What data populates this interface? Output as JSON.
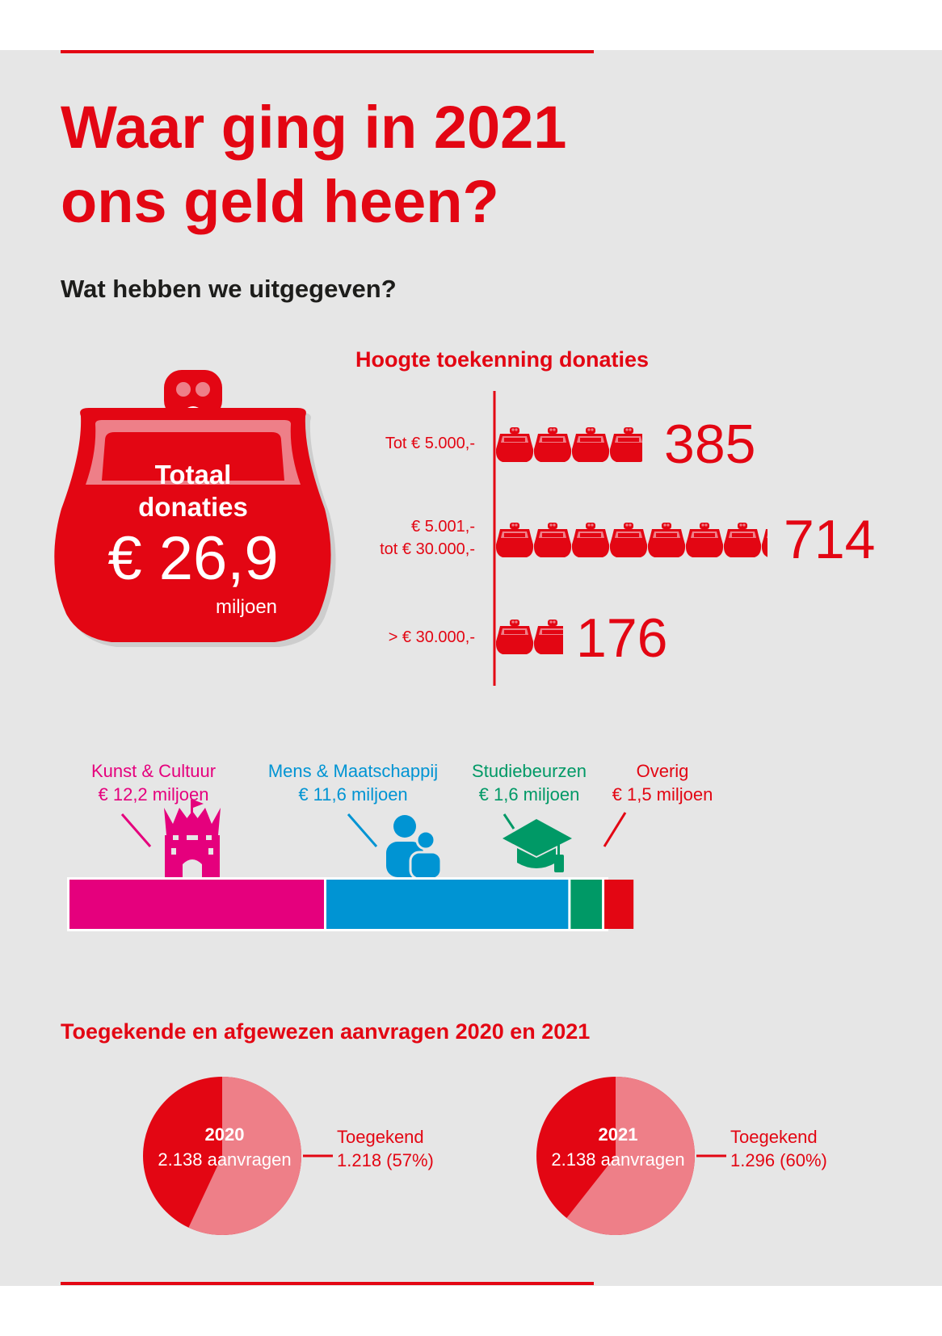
{
  "page": {
    "title_lines": [
      "Waar ging in 2021",
      "ons geld heen?"
    ],
    "subtitle": "Wat hebben we uitgegeven?",
    "colors": {
      "brand_red": "#e30613",
      "light_red": "#ee7f88",
      "panel_bg": "#e6e6e6",
      "dark_text": "#1d1d1b"
    }
  },
  "total": {
    "label_line1": "Totaal",
    "label_line2": "donaties",
    "value": "€ 26,9",
    "unit": "miljoen",
    "icon": "purse-icon"
  },
  "chart_data": [
    {
      "type": "bar",
      "title": "Hoogte toekenning donaties",
      "orientation": "horizontal",
      "categories": [
        "Tot € 5.000,-",
        "€ 5.001,- tot € 30.000,-",
        "> € 30.000,-"
      ],
      "category_lines": [
        [
          "Tot € 5.000,-"
        ],
        [
          "€ 5.001,-",
          "tot € 30.000,-"
        ],
        [
          "> € 30.000,-"
        ]
      ],
      "values": [
        385,
        714,
        176
      ],
      "value_labels": [
        "385",
        "714",
        "176"
      ],
      "mark_icon": "purse-icon",
      "xlabel": "",
      "ylabel": ""
    },
    {
      "type": "bar",
      "stacked": true,
      "orientation": "horizontal",
      "unit": "miljoen",
      "categories": [
        "Kunst & Cultuur",
        "Mens & Maatschappij",
        "Studiebeurzen",
        "Overig"
      ],
      "values": [
        12.2,
        11.6,
        1.6,
        1.5
      ],
      "value_labels": [
        "€ 12,2 miljoen",
        "€ 11,6 miljoen",
        "€ 1,6 miljoen",
        "€ 1,5 miljoen"
      ],
      "colors": [
        "#e5007d",
        "#0094d3",
        "#009966",
        "#e30613"
      ],
      "icons": [
        "castle-icon",
        "people-icon",
        "graduation-cap-icon",
        ""
      ]
    },
    {
      "type": "pie",
      "title": "Toegekende en afgewezen aanvragen 2020 en 2021",
      "pies": [
        {
          "year": "2020",
          "total_label": "2.138 aanvragen",
          "total": 2138,
          "granted": 1218,
          "legend_label": "Toegekend",
          "legend_value": "1.218 (57%)"
        },
        {
          "year": "2021",
          "total_label": "2.138 aanvragen",
          "total": 2138,
          "granted": 1296,
          "legend_label": "Toegekend",
          "legend_value": "1.296 (60%)"
        }
      ],
      "colors": {
        "granted": "#ee7f88",
        "rejected": "#e30613"
      }
    }
  ]
}
